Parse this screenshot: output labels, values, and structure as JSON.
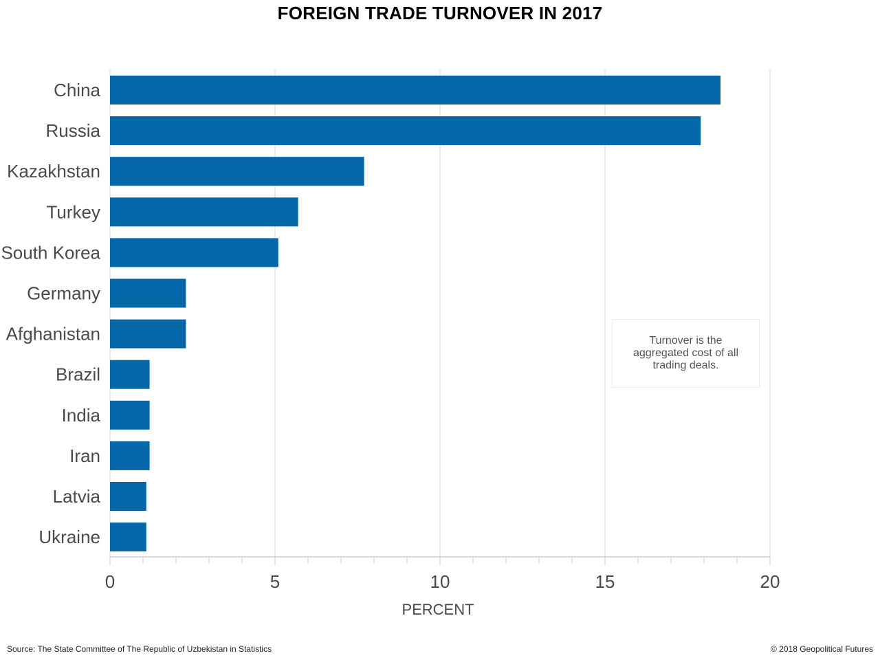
{
  "source": "Source: The State Committee of The Republic of Uzbekistan in Statistics",
  "copyright": "© 2018 Geopolitical Futures",
  "note": "Turnover is the aggregated cost of all trading deals.",
  "colors": {
    "bar": "#0063a6",
    "grid": "#d9d9d9",
    "axis": "#cccccc",
    "label": "#4a4a4a"
  },
  "chart_data": {
    "type": "bar",
    "orientation": "horizontal",
    "title": "FOREIGN TRADE TURNOVER IN 2017",
    "xlabel": "PERCENT",
    "ylabel": "",
    "xlim": [
      0,
      20
    ],
    "xticks": [
      0,
      5,
      10,
      15,
      20
    ],
    "grid": true,
    "categories": [
      "China",
      "Russia",
      "Kazakhstan",
      "Turkey",
      "South Korea",
      "Germany",
      "Afghanistan",
      "Brazil",
      "India",
      "Iran",
      "Latvia",
      "Ukraine"
    ],
    "values": [
      18.5,
      17.9,
      7.7,
      5.7,
      5.1,
      2.3,
      2.3,
      1.2,
      1.2,
      1.2,
      1.1,
      1.1
    ]
  }
}
